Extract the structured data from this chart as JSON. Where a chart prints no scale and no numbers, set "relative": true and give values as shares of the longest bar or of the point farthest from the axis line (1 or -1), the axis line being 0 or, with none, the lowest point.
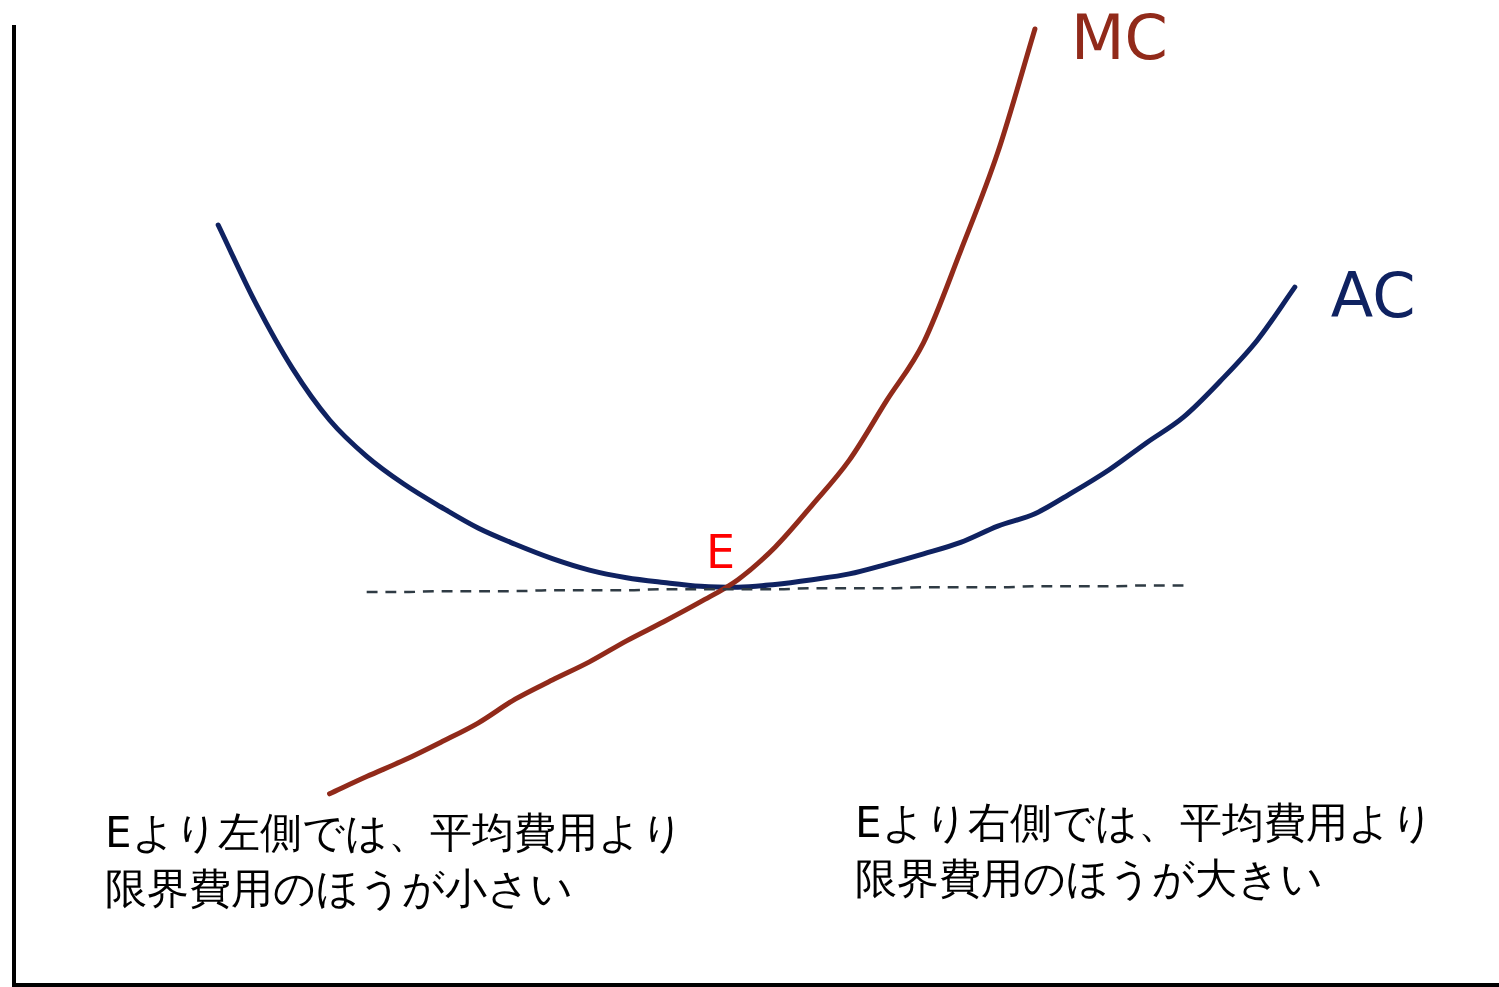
{
  "chart_data": {
    "type": "line",
    "relative": true,
    "categories": [
      null,
      null,
      null,
      null,
      null,
      null,
      null,
      null,
      null,
      null,
      null,
      null,
      null,
      null,
      null,
      null,
      null,
      null,
      null,
      null,
      null,
      null,
      null,
      null,
      null,
      null,
      null,
      null,
      null,
      null,
      null,
      null,
      null,
      null,
      null,
      null,
      null,
      null,
      null,
      null
    ],
    "series": [
      {
        "name": "AC",
        "color": "#0f2261",
        "values": [
          null,
          null,
          null,
          null,
          null,
          0.795,
          0.714,
          0.645,
          0.591,
          0.553,
          0.524,
          0.5,
          0.478,
          0.461,
          0.446,
          0.434,
          0.426,
          0.421,
          0.417,
          0.416,
          0.419,
          0.424,
          0.43,
          0.44,
          0.451,
          0.463,
          0.48,
          0.493,
          0.515,
          0.539,
          0.567,
          0.594,
          0.632,
          0.675,
          0.73,
          null,
          null,
          null,
          null,
          null
        ]
      },
      {
        "name": "MC",
        "color": "#912a1a",
        "values": [
          null,
          null,
          null,
          null,
          null,
          null,
          null,
          null,
          0.2,
          0.218,
          0.235,
          0.254,
          0.274,
          0.299,
          0.319,
          0.338,
          0.36,
          0.38,
          0.401,
          0.424,
          0.458,
          0.502,
          0.549,
          0.611,
          0.672,
          0.768,
          0.871,
          1.0,
          null,
          null,
          null,
          null,
          null,
          null,
          null,
          null,
          null,
          null,
          null,
          null
        ]
      },
      {
        "color": "#2f3b44",
        "line_style": "dashed",
        "values": [
          null,
          null,
          null,
          null,
          null,
          null,
          null,
          null,
          null,
          0.411,
          0.411,
          0.412,
          0.412,
          0.412,
          0.413,
          0.413,
          0.413,
          0.414,
          0.414,
          0.414,
          0.414,
          0.415,
          0.415,
          0.415,
          0.416,
          0.416,
          0.416,
          0.417,
          0.417,
          0.417,
          0.418,
          0.418,
          null,
          null,
          null,
          null,
          null,
          null,
          null,
          null
        ]
      }
    ],
    "annotations": [
      "E",
      "Eより左側では、平均費用より限界費用のほうが小さい",
      "Eより右側では、平均費用より限界費用のほうが大きい"
    ]
  }
}
